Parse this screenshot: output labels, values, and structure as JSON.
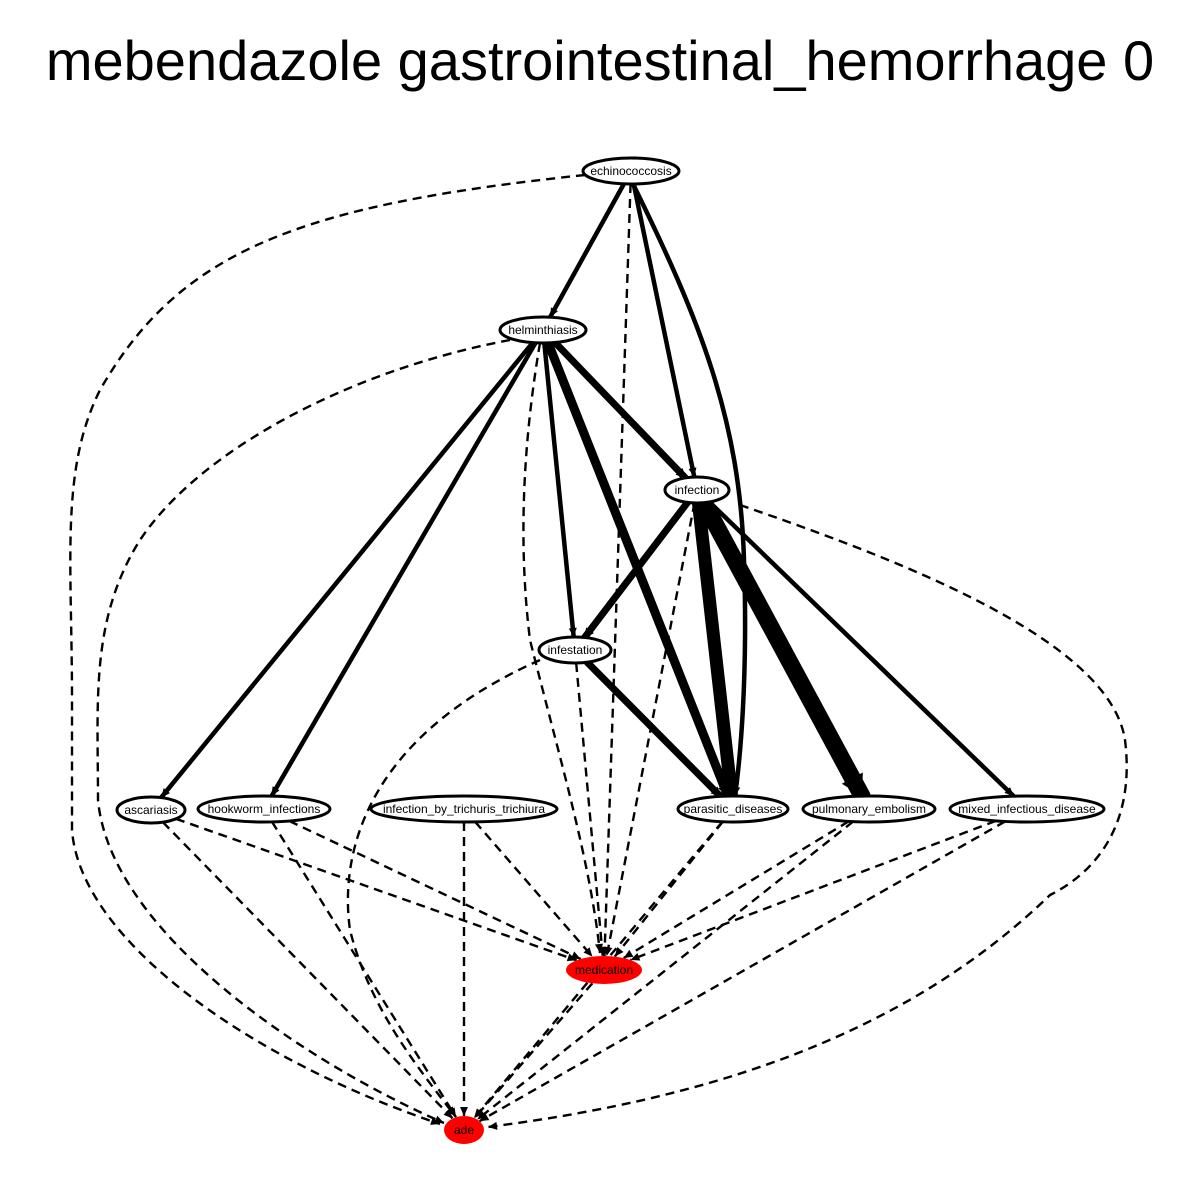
{
  "title": "mebendazole gastrointestinal_hemorrhage 0",
  "colors": {
    "highlight": "#ff0000",
    "edge": "#000000",
    "node_fill": "#ffffff"
  },
  "nodes": [
    {
      "id": "echinococcosis",
      "label": "echinococcosis",
      "highlight": false
    },
    {
      "id": "helminthiasis",
      "label": "helminthiasis",
      "highlight": false
    },
    {
      "id": "infection",
      "label": "infection",
      "highlight": false
    },
    {
      "id": "infestation",
      "label": "infestation",
      "highlight": false
    },
    {
      "id": "ascariasis",
      "label": "ascariasis",
      "highlight": false
    },
    {
      "id": "hookworm_infections",
      "label": "hookworm_infections",
      "highlight": false
    },
    {
      "id": "infection_by_trichuris_trichiura",
      "label": "infection_by_trichuris_trichiura",
      "highlight": false
    },
    {
      "id": "parasitic_diseases",
      "label": "parasitic_diseases",
      "highlight": false
    },
    {
      "id": "pulmonary_embolism",
      "label": "pulmonary_embolism",
      "highlight": false
    },
    {
      "id": "mixed_infectious_disease",
      "label": "mixed_infectious_disease",
      "highlight": false
    },
    {
      "id": "medication",
      "label": "medication",
      "highlight": true
    },
    {
      "id": "ade",
      "label": "ade",
      "highlight": true
    }
  ],
  "edges": [
    {
      "from": "echinococcosis",
      "to": "helminthiasis",
      "style": "solid",
      "weight": 1
    },
    {
      "from": "echinococcosis",
      "to": "infection",
      "style": "solid",
      "weight": 1
    },
    {
      "from": "echinococcosis",
      "to": "parasitic_diseases",
      "style": "solid",
      "weight": 1
    },
    {
      "from": "echinococcosis",
      "to": "medication",
      "style": "dashed",
      "weight": 0
    },
    {
      "from": "echinococcosis",
      "to": "ade",
      "style": "dashed",
      "weight": 0
    },
    {
      "from": "helminthiasis",
      "to": "infection",
      "style": "solid",
      "weight": 2
    },
    {
      "from": "helminthiasis",
      "to": "infestation",
      "style": "solid",
      "weight": 1
    },
    {
      "from": "helminthiasis",
      "to": "ascariasis",
      "style": "solid",
      "weight": 1
    },
    {
      "from": "helminthiasis",
      "to": "hookworm_infections",
      "style": "solid",
      "weight": 1
    },
    {
      "from": "helminthiasis",
      "to": "parasitic_diseases",
      "style": "solid",
      "weight": 3
    },
    {
      "from": "helminthiasis",
      "to": "medication",
      "style": "dashed",
      "weight": 0
    },
    {
      "from": "helminthiasis",
      "to": "ade",
      "style": "dashed",
      "weight": 0
    },
    {
      "from": "infection",
      "to": "infestation",
      "style": "solid",
      "weight": 2
    },
    {
      "from": "infection",
      "to": "parasitic_diseases",
      "style": "solid",
      "weight": 4
    },
    {
      "from": "infection",
      "to": "pulmonary_embolism",
      "style": "solid",
      "weight": 5
    },
    {
      "from": "infection",
      "to": "mixed_infectious_disease",
      "style": "solid",
      "weight": 1
    },
    {
      "from": "infection",
      "to": "medication",
      "style": "dashed",
      "weight": 0
    },
    {
      "from": "infection",
      "to": "ade",
      "style": "dashed",
      "weight": 0
    },
    {
      "from": "infestation",
      "to": "parasitic_diseases",
      "style": "solid",
      "weight": 2
    },
    {
      "from": "infestation",
      "to": "medication",
      "style": "dashed",
      "weight": 0
    },
    {
      "from": "infestation",
      "to": "ade",
      "style": "dashed",
      "weight": 0
    },
    {
      "from": "ascariasis",
      "to": "medication",
      "style": "dashed",
      "weight": 0
    },
    {
      "from": "ascariasis",
      "to": "ade",
      "style": "dashed",
      "weight": 0
    },
    {
      "from": "hookworm_infections",
      "to": "medication",
      "style": "dashed",
      "weight": 0
    },
    {
      "from": "hookworm_infections",
      "to": "ade",
      "style": "dashed",
      "weight": 0
    },
    {
      "from": "infection_by_trichuris_trichiura",
      "to": "medication",
      "style": "dashed",
      "weight": 0
    },
    {
      "from": "infection_by_trichuris_trichiura",
      "to": "ade",
      "style": "dashed",
      "weight": 0
    },
    {
      "from": "parasitic_diseases",
      "to": "medication",
      "style": "dashed",
      "weight": 0
    },
    {
      "from": "parasitic_diseases",
      "to": "ade",
      "style": "dashed",
      "weight": 0
    },
    {
      "from": "pulmonary_embolism",
      "to": "medication",
      "style": "dashed",
      "weight": 0
    },
    {
      "from": "pulmonary_embolism",
      "to": "ade",
      "style": "dashed",
      "weight": 0
    },
    {
      "from": "mixed_infectious_disease",
      "to": "medication",
      "style": "dashed",
      "weight": 0
    },
    {
      "from": "mixed_infectious_disease",
      "to": "ade",
      "style": "dashed",
      "weight": 0
    },
    {
      "from": "medication",
      "to": "ade",
      "style": "dashed",
      "weight": 0
    }
  ]
}
